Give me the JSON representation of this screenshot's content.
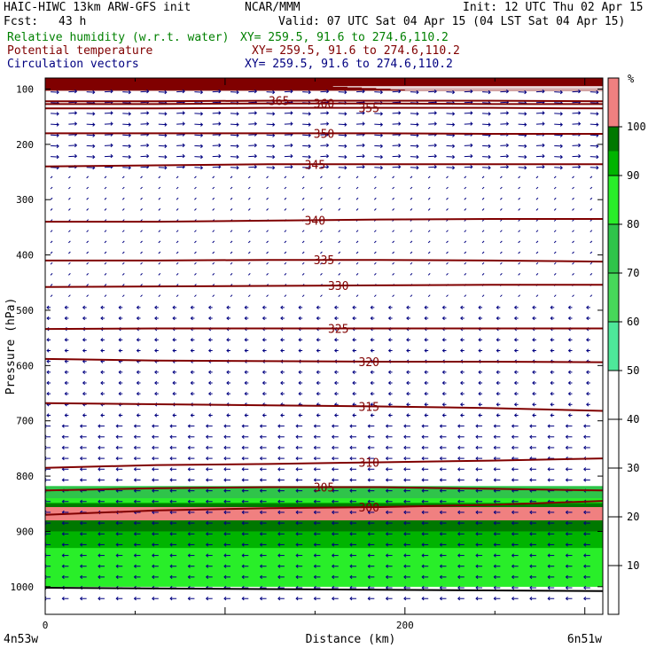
{
  "header": {
    "title": "HAIC-HIWC 13km ARW-GFS init",
    "org": "NCAR/MMM",
    "init": "Init: 12 UTC Thu 02 Apr 15",
    "fcst_label": "Fcst:",
    "fcst_value": "43 h",
    "valid": "Valid: 07 UTC Sat 04 Apr 15 (04 LST Sat 04 Apr 15)",
    "fields": [
      {
        "label": "Relative humidity (w.r.t. water)",
        "xy": "XY= 259.5, 91.6 to 274.6,110.2",
        "color": "#008000"
      },
      {
        "label": "Potential temperature",
        "xy": "XY= 259.5, 91.6 to 274.6,110.2",
        "color": "#800000"
      },
      {
        "label": "Circulation vectors",
        "xy": "XY= 259.5, 91.6 to 274.6,110.2",
        "color": "#000080"
      }
    ]
  },
  "chart_data": {
    "type": "cross-section",
    "ylabel": "Pressure (hPa)",
    "xlabel": "Distance (km)",
    "y_ticks": [
      100,
      200,
      300,
      400,
      500,
      600,
      700,
      800,
      900,
      1000
    ],
    "x_ticks": [
      0,
      200
    ],
    "x_end_labels": [
      "4n53w",
      "6n51w"
    ],
    "xlim": [
      0,
      310
    ],
    "ylim": [
      1050,
      80
    ],
    "colorbar": {
      "unit": "%",
      "ticks": [
        10,
        20,
        30,
        40,
        50,
        60,
        70,
        80,
        90,
        100
      ],
      "bins": [
        {
          "from": 50,
          "to": 60,
          "color": "#4ee89a"
        },
        {
          "from": 60,
          "to": 70,
          "color": "#47d85a"
        },
        {
          "from": 70,
          "to": 80,
          "color": "#2fc44a"
        },
        {
          "from": 80,
          "to": 90,
          "color": "#29ee29"
        },
        {
          "from": 90,
          "to": 95,
          "color": "#00b400"
        },
        {
          "from": 95,
          "to": 100,
          "color": "#007800"
        },
        {
          "from": 100,
          "to": 110,
          "color": "#f08080"
        }
      ]
    },
    "rh_layers": [
      {
        "name": "rh-upper-saturated",
        "color": "#800000",
        "top": 80,
        "bottom": 103,
        "bulge_x": [
          165,
          310
        ],
        "bulge_bottom": 103
      },
      {
        "name": "rh-70",
        "color": "#2fc44a",
        "top": 818,
        "bottom": 1000
      },
      {
        "name": "rh-80",
        "color": "#29ee29",
        "top": 840,
        "bottom": 1000
      },
      {
        "name": "rh-90",
        "color": "#00b400",
        "top": 848,
        "bottom": 930
      },
      {
        "name": "rh-95",
        "color": "#007800",
        "top": 850,
        "bottom": 900
      },
      {
        "name": "rh-supersat",
        "color": "#f08080",
        "top": 856,
        "bottom": 880
      }
    ],
    "theta_contours": [
      {
        "value": 365,
        "label_x": 130,
        "p": [
          122,
          122,
          121,
          121,
          121,
          122
        ]
      },
      {
        "value": 360,
        "label_x": 155,
        "p": [
          127,
          127,
          126,
          126,
          127,
          127
        ]
      },
      {
        "value": 355,
        "label_x": 180,
        "p": [
          135,
          135,
          134,
          134,
          134,
          135
        ]
      },
      {
        "value": 350,
        "label_x": 155,
        "p": [
          180,
          180,
          180,
          180,
          181,
          181
        ]
      },
      {
        "value": 345,
        "label_x": 150,
        "p": [
          240,
          238,
          236,
          236,
          236,
          236
        ]
      },
      {
        "value": 340,
        "label_x": 150,
        "p": [
          340,
          340,
          338,
          336,
          335,
          335
        ]
      },
      {
        "value": 335,
        "label_x": 155,
        "p": [
          410,
          410,
          409,
          409,
          410,
          412
        ]
      },
      {
        "value": 330,
        "label_x": 163,
        "p": [
          458,
          457,
          456,
          455,
          454,
          454
        ]
      },
      {
        "value": 325,
        "label_x": 163,
        "p": [
          534,
          533,
          533,
          533,
          533,
          533
        ]
      },
      {
        "value": 320,
        "label_x": 180,
        "p": [
          588,
          591,
          592,
          593,
          593,
          594
        ]
      },
      {
        "value": 315,
        "label_x": 180,
        "p": [
          668,
          670,
          672,
          674,
          677,
          682
        ]
      },
      {
        "value": 310,
        "label_x": 180,
        "p": [
          785,
          780,
          778,
          775,
          772,
          768
        ]
      },
      {
        "value": 305,
        "label_x": 155,
        "p": [
          826,
          822,
          820,
          820,
          823,
          826
        ]
      },
      {
        "value": 300,
        "label_x": 180,
        "p": [
          870,
          862,
          858,
          856,
          852,
          845
        ]
      }
    ],
    "colors": {
      "theta": "#800000",
      "vectors": "#000080",
      "black": "#000000"
    }
  }
}
